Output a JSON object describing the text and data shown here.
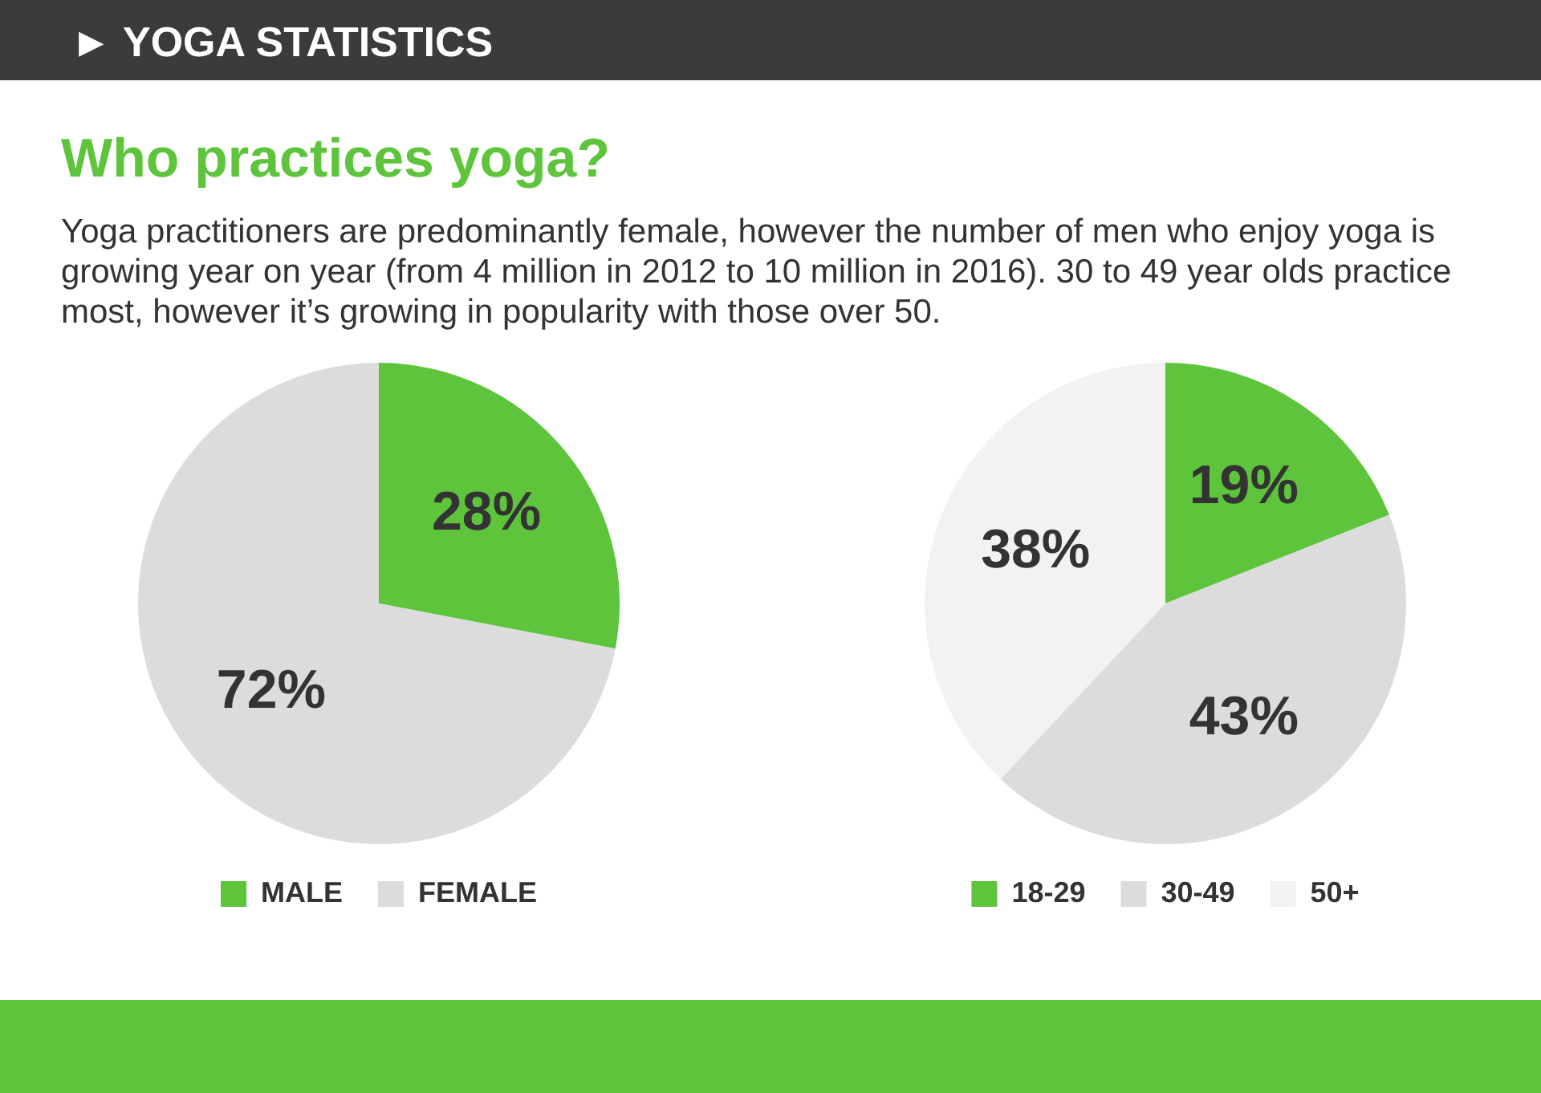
{
  "chart_data": [
    {
      "type": "pie",
      "title": "Who practices yoga?",
      "subtitle": "Yoga practitioners are predominantly female, however the number of men who enjoy yoga is growing year on year (from 4 million in 2012 to 10 million in 2016). 30 to 49 year olds practice most, however it’s growing in popularity with those over 50.",
      "annotations": [
        "► YOGA STATISTICS"
      ],
      "categories": [
        "MALE",
        "FEMALE"
      ],
      "values": [
        28,
        72
      ],
      "colors": [
        "#5ec43c",
        "#dcdcdc"
      ],
      "value_labels": [
        "28%",
        "72%"
      ],
      "legend": "bottom"
    },
    {
      "type": "pie",
      "categories": [
        "18-29",
        "30-49",
        "50+"
      ],
      "values": [
        19,
        43,
        38
      ],
      "colors": [
        "#5ec43c",
        "#dcdcdc",
        "#f2f2f2"
      ],
      "value_labels": [
        "19%",
        "43%",
        "38%"
      ],
      "legend": "bottom"
    }
  ]
}
